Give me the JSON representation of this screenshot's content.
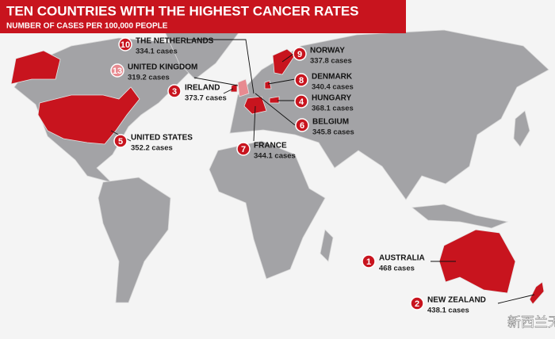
{
  "header": {
    "title": "TEN COUNTRIES WITH THE HIGHEST CANCER RATES",
    "subtitle": "NUMBER OF CASES PER 100,000 PEOPLE"
  },
  "countries": [
    {
      "rank": "10",
      "name": "THE NETHERLANDS",
      "cases": "334.1 cases"
    },
    {
      "rank": "13",
      "name": "UNITED KINGDOM",
      "cases": "319.2 cases"
    },
    {
      "rank": "3",
      "name": "IRELAND",
      "cases": "373.7 cases"
    },
    {
      "rank": "5",
      "name": "UNITED STATES",
      "cases": "352.2 cases"
    },
    {
      "rank": "7",
      "name": "FRANCE",
      "cases": "344.1 cases"
    },
    {
      "rank": "9",
      "name": "NORWAY",
      "cases": "337.8 cases"
    },
    {
      "rank": "8",
      "name": "DENMARK",
      "cases": "340.4 cases"
    },
    {
      "rank": "4",
      "name": "HUNGARY",
      "cases": "368.1 cases"
    },
    {
      "rank": "6",
      "name": "BELGIUM",
      "cases": "345.8 cases"
    },
    {
      "rank": "1",
      "name": "AUSTRALIA",
      "cases": "468 cases"
    },
    {
      "rank": "2",
      "name": "NEW ZEALAND",
      "cases": "438.1 cases"
    }
  ],
  "watermark": "新西兰无忧"
}
